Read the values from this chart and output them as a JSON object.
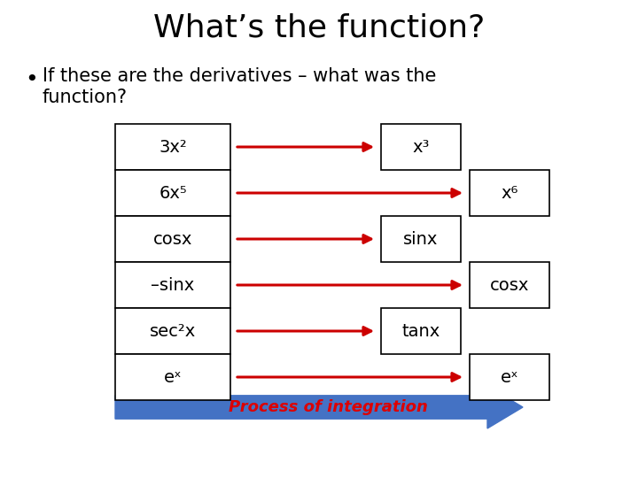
{
  "title": "What’s the function?",
  "line1": "If these are the derivatives – what was the",
  "line2": "function?",
  "background_color": "#ffffff",
  "title_fontsize": 26,
  "subtitle_fontsize": 15,
  "label_fontsize": 14,
  "left_labels": [
    "3x²",
    "6x⁵",
    "cosx",
    "–sinx",
    "sec²x",
    "eˣ"
  ],
  "right_labels": [
    "x³",
    "x⁶",
    "sinx",
    "cosx",
    "tanx",
    "eˣ"
  ],
  "right_positions": [
    0,
    1,
    0,
    1,
    0,
    1
  ],
  "box_color": "#ffffff",
  "box_edge_color": "#000000",
  "arrow_color": "#cc0000",
  "process_arrow_color": "#4472c4",
  "process_text_color": "#dd0000",
  "process_text": "Process of integration"
}
